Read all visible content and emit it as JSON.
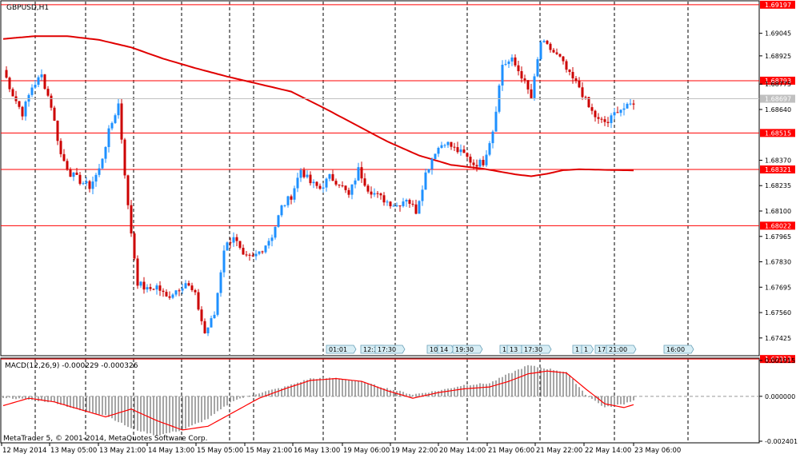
{
  "symbol_title": "GBPUSD,H1",
  "macd_title": "MACD(12,26,9) -0.000229 -0.000326",
  "copyright": "MetaTrader 5, © 2001-2014, MetaQuotes Software Corp.",
  "colors": {
    "bull": "#1e90ff",
    "bear": "#cc0000",
    "hline": "#ff0000",
    "ma": "#e00000",
    "macd_hist": "#808080",
    "signal": "#ff0000",
    "vgrid": "#000000",
    "current": "#c0c0c0"
  },
  "chart_data": [
    {
      "type": "candlestick",
      "title": "GBPUSD,H1",
      "ylim": [
        1.67335,
        1.69205
      ],
      "price_ticks": [
        "1.69197",
        "1.69045",
        "1.68925",
        "1.68793",
        "1.68775",
        "1.68697",
        "1.68640",
        "1.68515",
        "1.68370",
        "1.68321",
        "1.68235",
        "1.68100",
        "1.68022",
        "1.67965",
        "1.67830",
        "1.67695",
        "1.67560",
        "1.67425",
        "1.67313"
      ],
      "horizontal_levels": [
        "1.69197",
        "1.68793",
        "1.68515",
        "1.68321",
        "1.68022",
        "1.67313"
      ],
      "current_price": "1.68697",
      "time_labels": [
        "12 May 2014",
        "13 May 05:00",
        "13 May 21:00",
        "14 May 13:00",
        "15 May 05:00",
        "15 May 21:00",
        "16 May 13:00",
        "19 May 06:00",
        "19 May 22:00",
        "20 May 14:00",
        "21 May 06:00",
        "21 May 22:00",
        "22 May 14:00",
        "23 May 06:00"
      ],
      "event_labels": [
        "01:01",
        "12:3",
        "17:30",
        "10:",
        "14",
        "19:30",
        "1",
        "13",
        "17:30",
        "1",
        "1",
        "17:",
        "21:00",
        "16:00"
      ],
      "waypoints": [
        [
          0,
          1.6885
        ],
        [
          3,
          1.6872
        ],
        [
          6,
          1.6862
        ],
        [
          9,
          1.6876
        ],
        [
          12,
          1.6882
        ],
        [
          15,
          1.6866
        ],
        [
          18,
          1.684
        ],
        [
          21,
          1.683
        ],
        [
          24,
          1.6826
        ],
        [
          27,
          1.6823
        ],
        [
          30,
          1.6832
        ],
        [
          33,
          1.6852
        ],
        [
          36,
          1.6867
        ],
        [
          39,
          1.6812
        ],
        [
          42,
          1.6772
        ],
        [
          45,
          1.6768
        ],
        [
          48,
          1.677
        ],
        [
          51,
          1.6764
        ],
        [
          54,
          1.6768
        ],
        [
          57,
          1.6772
        ],
        [
          60,
          1.6765
        ],
        [
          63,
          1.6745
        ],
        [
          66,
          1.6755
        ],
        [
          69,
          1.679
        ],
        [
          72,
          1.6797
        ],
        [
          75,
          1.6785
        ],
        [
          78,
          1.6785
        ],
        [
          81,
          1.679
        ],
        [
          84,
          1.6797
        ],
        [
          87,
          1.6812
        ],
        [
          90,
          1.6818
        ],
        [
          93,
          1.6832
        ],
        [
          96,
          1.6825
        ],
        [
          99,
          1.6822
        ],
        [
          102,
          1.6828
        ],
        [
          105,
          1.6825
        ],
        [
          108,
          1.6818
        ],
        [
          111,
          1.6832
        ],
        [
          114,
          1.6822
        ],
        [
          117,
          1.6818
        ],
        [
          120,
          1.6815
        ],
        [
          123,
          1.6813
        ],
        [
          126,
          1.6817
        ],
        [
          129,
          1.681
        ],
        [
          132,
          1.683
        ],
        [
          135,
          1.6842
        ],
        [
          138,
          1.6847
        ],
        [
          141,
          1.6843
        ],
        [
          144,
          1.684
        ],
        [
          147,
          1.6835
        ],
        [
          150,
          1.6836
        ],
        [
          153,
          1.6853
        ],
        [
          156,
          1.6888
        ],
        [
          159,
          1.689
        ],
        [
          162,
          1.6882
        ],
        [
          165,
          1.687
        ],
        [
          168,
          1.69
        ],
        [
          171,
          1.6896
        ],
        [
          174,
          1.6891
        ],
        [
          177,
          1.6882
        ],
        [
          180,
          1.6876
        ],
        [
          183,
          1.6865
        ],
        [
          186,
          1.6858
        ],
        [
          189,
          1.6857
        ],
        [
          192,
          1.6864
        ],
        [
          195,
          1.6865
        ],
        [
          197,
          1.6868
        ]
      ],
      "ma_points": [
        [
          0,
          1.69015
        ],
        [
          10,
          1.6903
        ],
        [
          20,
          1.6903
        ],
        [
          30,
          1.6901
        ],
        [
          40,
          1.6897
        ],
        [
          50,
          1.6891
        ],
        [
          60,
          1.6886
        ],
        [
          70,
          1.68815
        ],
        [
          80,
          1.68775
        ],
        [
          90,
          1.68735
        ],
        [
          100,
          1.6865
        ],
        [
          110,
          1.6856
        ],
        [
          120,
          1.6847
        ],
        [
          130,
          1.68395
        ],
        [
          140,
          1.68345
        ],
        [
          150,
          1.68325
        ],
        [
          160,
          1.68295
        ],
        [
          165,
          1.68285
        ],
        [
          170,
          1.68298
        ],
        [
          175,
          1.68317
        ],
        [
          180,
          1.68322
        ],
        [
          190,
          1.68318
        ],
        [
          197,
          1.68316
        ]
      ]
    },
    {
      "type": "macd",
      "title": "MACD(12,26,9) -0.000229 -0.000326",
      "ylim": [
        -0.002401,
        0.001915
      ],
      "ticks": [
        "0.001915",
        "0.000000",
        "-0.002401"
      ],
      "histogram_points": [
        [
          0,
          -6e-05
        ],
        [
          8,
          -0.00018
        ],
        [
          16,
          -0.00032
        ],
        [
          24,
          -0.00075
        ],
        [
          32,
          -0.001
        ],
        [
          40,
          -0.00172
        ],
        [
          48,
          -0.0021
        ],
        [
          56,
          -0.0018
        ],
        [
          64,
          -0.0012
        ],
        [
          72,
          -0.00022
        ],
        [
          80,
          0.00018
        ],
        [
          88,
          0.0005
        ],
        [
          96,
          0.00095
        ],
        [
          104,
          0.00098
        ],
        [
          112,
          0.00078
        ],
        [
          120,
          0.00042
        ],
        [
          128,
          0.0001
        ],
        [
          136,
          0.0003
        ],
        [
          144,
          0.0006
        ],
        [
          152,
          0.0007
        ],
        [
          158,
          0.0012
        ],
        [
          164,
          0.00165
        ],
        [
          170,
          0.00148
        ],
        [
          176,
          0.0013
        ],
        [
          182,
          0.0001
        ],
        [
          188,
          -0.0006
        ],
        [
          194,
          -0.0004
        ],
        [
          197,
          -0.0002
        ]
      ],
      "signal_points": [
        [
          0,
          -0.0005
        ],
        [
          8,
          -0.0001
        ],
        [
          16,
          -0.0003
        ],
        [
          24,
          -0.0007
        ],
        [
          32,
          -0.0011
        ],
        [
          40,
          -0.00068
        ],
        [
          48,
          -0.0013
        ],
        [
          56,
          -0.0018
        ],
        [
          64,
          -0.0016
        ],
        [
          72,
          -0.00085
        ],
        [
          80,
          -0.0001
        ],
        [
          88,
          0.0004
        ],
        [
          96,
          0.00085
        ],
        [
          104,
          0.00095
        ],
        [
          112,
          0.0008
        ],
        [
          120,
          0.0003
        ],
        [
          128,
          -0.0001
        ],
        [
          136,
          0.0002
        ],
        [
          144,
          0.0004
        ],
        [
          152,
          0.0005
        ],
        [
          158,
          0.0008
        ],
        [
          164,
          0.0012
        ],
        [
          170,
          0.00135
        ],
        [
          176,
          0.00125
        ],
        [
          182,
          0.0004
        ],
        [
          188,
          -0.0004
        ],
        [
          194,
          -0.0006
        ],
        [
          197,
          -0.00045
        ]
      ]
    }
  ]
}
